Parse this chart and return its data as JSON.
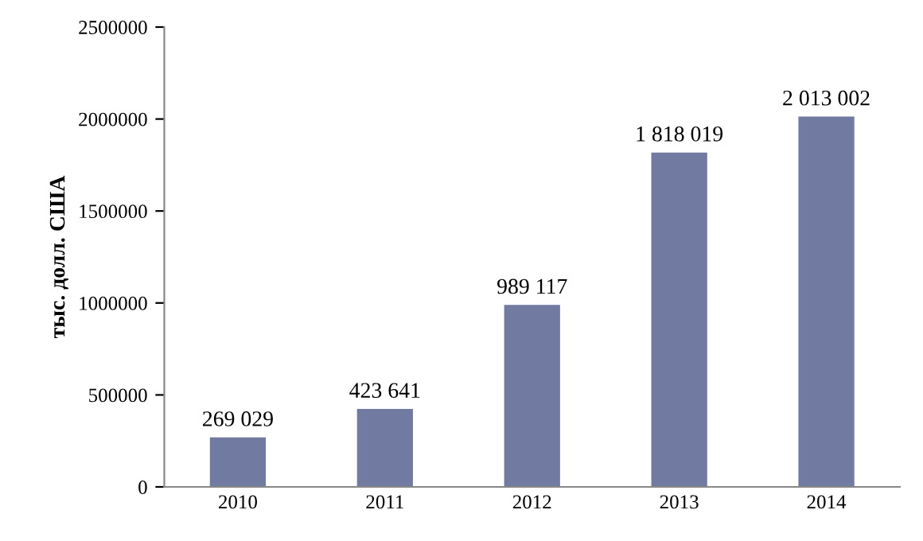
{
  "chart_data": {
    "type": "bar",
    "ylabel": "тыс. долл. США",
    "categories": [
      "2010",
      "2011",
      "2012",
      "2013",
      "2014"
    ],
    "values": [
      269029,
      423641,
      989117,
      1818019,
      2013002
    ],
    "value_labels": [
      "269 029",
      "423 641",
      "989 117",
      "1 818 019",
      "2 013 002"
    ],
    "color": "#717aa0",
    "ylim": [
      0,
      2500000
    ],
    "yticks": [
      0,
      500000,
      1000000,
      1500000,
      2000000,
      2500000
    ],
    "grid": false
  }
}
